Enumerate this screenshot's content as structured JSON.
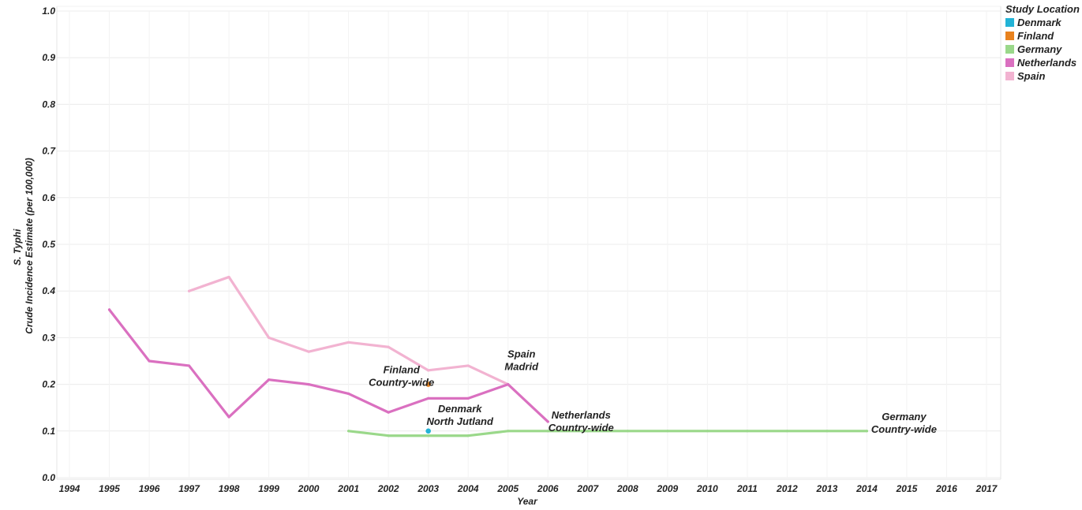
{
  "chart_data": {
    "type": "line",
    "title": "",
    "xlabel": "Year",
    "ylabel_line1": "S. Typhi",
    "ylabel_line2": "Crude Incidence Estimate (per 100,000)",
    "xlim": [
      1994,
      2017
    ],
    "ylim": [
      0,
      1
    ],
    "x_ticks": [
      "1994",
      "1995",
      "1996",
      "1997",
      "1998",
      "1999",
      "2000",
      "2001",
      "2002",
      "2003",
      "2004",
      "2005",
      "2006",
      "2007",
      "2008",
      "2009",
      "2010",
      "2011",
      "2012",
      "2013",
      "2014",
      "2015",
      "2016",
      "2017"
    ],
    "y_ticks": [
      "0.0",
      "0.1",
      "0.2",
      "0.3",
      "0.4",
      "0.5",
      "0.6",
      "0.7",
      "0.8",
      "0.9",
      "1.0"
    ],
    "grid": true,
    "legend": {
      "title": "Study Location",
      "position": "top-right",
      "entries": [
        "Denmark",
        "Finland",
        "Germany",
        "Netherlands",
        "Spain"
      ]
    },
    "series": [
      {
        "name": "Spain",
        "color": "#f2b3d1",
        "kind": "line",
        "x": [
          1997,
          1998,
          1999,
          2000,
          2001,
          2002,
          2003,
          2004,
          2005
        ],
        "y": [
          0.4,
          0.43,
          0.3,
          0.27,
          0.29,
          0.28,
          0.23,
          0.24,
          0.2
        ],
        "annotation": [
          "Spain",
          "Madrid"
        ]
      },
      {
        "name": "Netherlands",
        "color": "#da70c0",
        "kind": "line",
        "x": [
          1995,
          1996,
          1997,
          1998,
          1999,
          2000,
          2001,
          2002,
          2003,
          2004,
          2005,
          2006
        ],
        "y": [
          0.36,
          0.25,
          0.24,
          0.13,
          0.21,
          0.2,
          0.18,
          0.14,
          0.17,
          0.17,
          0.2,
          0.12
        ],
        "annotation": [
          "Netherlands",
          "Country-wide"
        ]
      },
      {
        "name": "Germany",
        "color": "#9ad88a",
        "kind": "line",
        "x": [
          2001,
          2002,
          2003,
          2004,
          2005,
          2006,
          2007,
          2008,
          2009,
          2010,
          2011,
          2012,
          2013,
          2014
        ],
        "y": [
          0.1,
          0.09,
          0.09,
          0.09,
          0.1,
          0.1,
          0.1,
          0.1,
          0.1,
          0.1,
          0.1,
          0.1,
          0.1,
          0.1
        ],
        "annotation": [
          "Germany",
          "Country-wide"
        ]
      },
      {
        "name": "Finland",
        "color": "#e8821e",
        "kind": "point",
        "x": [
          2003
        ],
        "y": [
          0.2
        ],
        "annotation": [
          "Finland",
          "Country-wide"
        ]
      },
      {
        "name": "Denmark",
        "color": "#22b3d6",
        "kind": "point",
        "x": [
          2003
        ],
        "y": [
          0.1
        ],
        "annotation": [
          "Denmark",
          "North Jutland"
        ]
      }
    ]
  }
}
